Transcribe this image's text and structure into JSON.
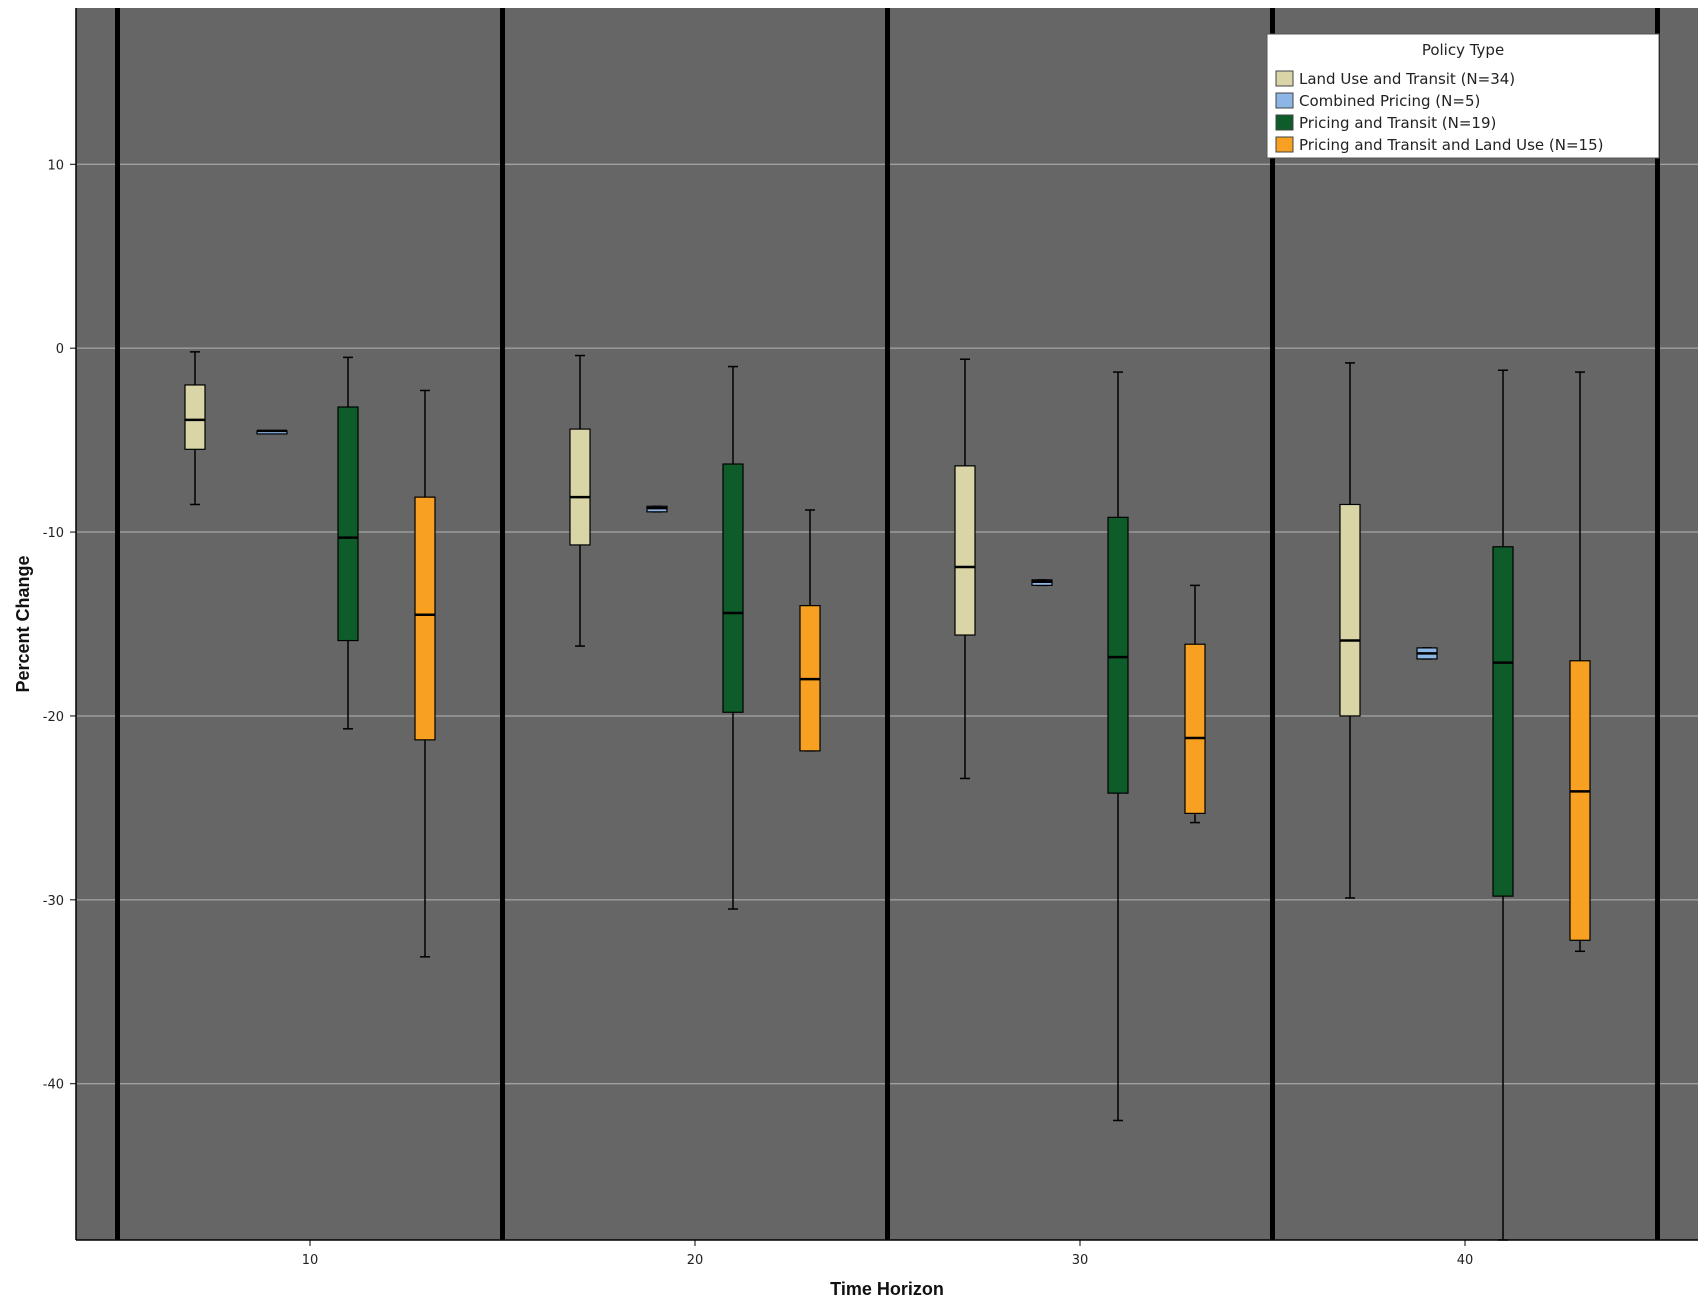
{
  "chart_data": {
    "type": "boxplot",
    "xlabel": "Time Horizon",
    "ylabel": "Percent Change",
    "categories": [
      "10",
      "20",
      "30",
      "40"
    ],
    "ylim": [
      -48.5,
      18.5
    ],
    "y_ticks": [
      10,
      0,
      -10,
      -20,
      -30,
      -40
    ],
    "grid": true,
    "legend": {
      "title": "Policy Type",
      "placement": "top-right",
      "entries": [
        "Land Use and Transit (N=34)",
        "Combined Pricing (N=5)",
        "Pricing and Transit (N=19)",
        "Pricing and Transit and Land Use (N=15)"
      ]
    },
    "colors": {
      "plot_background": "#666666",
      "gridline": "#b4b4b4",
      "separator": "#000000"
    },
    "series": [
      {
        "name": "Land Use and Transit (N=34)",
        "color": "#d9d5a6",
        "boxes": [
          {
            "x": "10",
            "min": -8.5,
            "q1": -5.5,
            "median": -3.9,
            "q3": -2.0,
            "max": -0.2
          },
          {
            "x": "20",
            "min": -16.2,
            "q1": -10.7,
            "median": -8.1,
            "q3": -4.4,
            "max": -0.4
          },
          {
            "x": "30",
            "min": -23.4,
            "q1": -15.6,
            "median": -11.9,
            "q3": -6.4,
            "max": -0.6
          },
          {
            "x": "40",
            "min": -29.9,
            "q1": -20.0,
            "median": -15.9,
            "q3": -8.5,
            "max": -0.8
          }
        ]
      },
      {
        "name": "Combined Pricing (N=5)",
        "color": "#8cb6e6",
        "boxes": [
          {
            "x": "10",
            "min": -4.5,
            "q1": -4.5,
            "median": -4.5,
            "q3": -4.5,
            "max": -4.5
          },
          {
            "x": "20",
            "min": -8.9,
            "q1": -8.9,
            "median": -8.7,
            "q3": -8.6,
            "max": -8.6
          },
          {
            "x": "30",
            "min": -12.9,
            "q1": -12.9,
            "median": -12.7,
            "q3": -12.6,
            "max": -12.6
          },
          {
            "x": "40",
            "min": -16.9,
            "q1": -16.9,
            "median": -16.6,
            "q3": -16.3,
            "max": -16.3
          }
        ]
      },
      {
        "name": "Pricing and Transit (N=19)",
        "color": "#0d5c2a",
        "boxes": [
          {
            "x": "10",
            "min": -20.7,
            "q1": -15.9,
            "median": -10.3,
            "q3": -3.2,
            "max": -0.5
          },
          {
            "x": "20",
            "min": -30.5,
            "q1": -19.8,
            "median": -14.4,
            "q3": -6.3,
            "max": -1.0
          },
          {
            "x": "30",
            "min": -42.0,
            "q1": -24.2,
            "median": -16.8,
            "q3": -9.2,
            "max": -1.3
          },
          {
            "x": "40",
            "min": -48.5,
            "q1": -29.8,
            "median": -17.1,
            "q3": -10.8,
            "max": -1.2
          }
        ]
      },
      {
        "name": "Pricing and Transit and Land Use (N=15)",
        "color": "#f7a022",
        "boxes": [
          {
            "x": "10",
            "min": -33.1,
            "q1": -21.3,
            "median": -14.5,
            "q3": -8.1,
            "max": -2.3
          },
          {
            "x": "20",
            "min": -21.9,
            "q1": -21.9,
            "median": -18.0,
            "q3": -14.0,
            "max": -8.8
          },
          {
            "x": "30",
            "min": -25.8,
            "q1": -25.3,
            "median": -21.2,
            "q3": -16.1,
            "max": -12.9
          },
          {
            "x": "40",
            "min": -32.8,
            "q1": -32.2,
            "median": -24.1,
            "q3": -17.0,
            "max": -1.3
          }
        ]
      }
    ]
  }
}
